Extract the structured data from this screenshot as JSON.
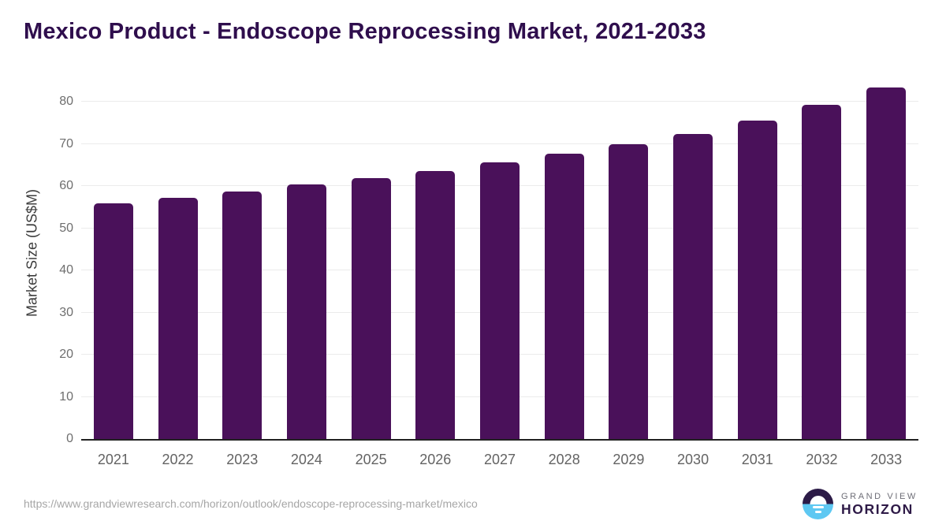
{
  "chart": {
    "title": "Mexico Product - Endoscope Reprocessing Market, 2021-2033",
    "ylabel": "Market Size (US$M)"
  },
  "chart_data": {
    "type": "bar",
    "title": "Mexico Product - Endoscope Reprocessing Market, 2021-2033",
    "xlabel": "",
    "ylabel": "Market Size (US$M)",
    "categories": [
      "2021",
      "2022",
      "2023",
      "2024",
      "2025",
      "2026",
      "2027",
      "2028",
      "2029",
      "2030",
      "2031",
      "2032",
      "2033"
    ],
    "values": [
      55.8,
      57.2,
      58.7,
      60.3,
      61.9,
      63.6,
      65.6,
      67.7,
      69.9,
      72.3,
      75.5,
      79.3,
      83.4
    ],
    "yticks": [
      0,
      10,
      20,
      30,
      40,
      50,
      60,
      70,
      80
    ],
    "ylim": [
      0,
      85.4
    ],
    "grid": true,
    "legend": "none",
    "bar_color": "#4a115a"
  },
  "footer": {
    "source_url": "https://www.grandviewresearch.com/horizon/outlook/endoscope-reprocessing-market/mexico",
    "logo": {
      "top": "GRAND VIEW",
      "bottom": "HORIZON"
    }
  },
  "colors": {
    "title": "#2f0e4d",
    "bar": "#4a115a",
    "gridline": "#ebebeb",
    "axis_line": "#212121",
    "tick_label": "#6e6e6e",
    "axis_title": "#3c3c3c",
    "url_text": "#a6a6a6",
    "logo_dark": "#2c1b47",
    "logo_blue": "#5ec8f2"
  }
}
